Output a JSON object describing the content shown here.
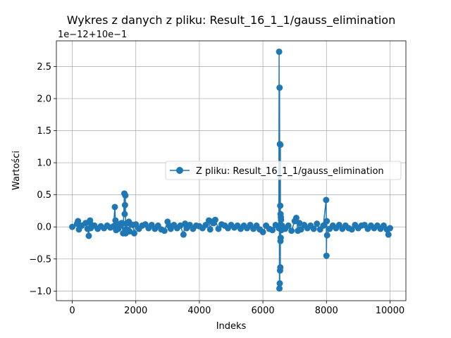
{
  "chart_data": {
    "type": "line",
    "title": "Wykres z danych z pliku: Result_16_1_1/gauss_elimination",
    "xlabel": "Indeks",
    "ylabel": "Wartości",
    "offset_label": "1e−12+10e−1",
    "xlim": [
      -500,
      10500
    ],
    "ylim": [
      -1.15,
      2.9
    ],
    "x_ticks": [
      0,
      2000,
      4000,
      6000,
      8000,
      10000
    ],
    "x_tick_labels": [
      "0",
      "2000",
      "4000",
      "6000",
      "8000",
      "10000"
    ],
    "y_ticks": [
      -1.0,
      -0.5,
      0.0,
      0.5,
      1.0,
      1.5,
      2.0,
      2.5
    ],
    "y_tick_labels": [
      "−1.0",
      "−0.5",
      "0.0",
      "0.5",
      "1.0",
      "1.5",
      "2.0",
      "2.5"
    ],
    "grid": true,
    "legend_position": "center-right",
    "color": "#1f77b4",
    "series": [
      {
        "name": "Z pliku: Result_16_1_1/gauss_elimination",
        "x": [
          0,
          150,
          180,
          210,
          300,
          420,
          480,
          520,
          540,
          560,
          580,
          600,
          700,
          800,
          900,
          1000,
          1100,
          1200,
          1300,
          1340,
          1360,
          1380,
          1400,
          1450,
          1500,
          1550,
          1600,
          1640,
          1650,
          1660,
          1670,
          1680,
          1690,
          1700,
          1720,
          1780,
          1800,
          1850,
          1900,
          1950,
          2000,
          2100,
          2200,
          2300,
          2400,
          2500,
          2600,
          2700,
          2800,
          2900,
          3000,
          3050,
          3100,
          3200,
          3300,
          3400,
          3500,
          3550,
          3600,
          3700,
          3800,
          3900,
          4000,
          4100,
          4200,
          4300,
          4340,
          4400,
          4450,
          4500,
          4600,
          4700,
          4800,
          4900,
          5000,
          5100,
          5200,
          5300,
          5400,
          5500,
          5600,
          5700,
          5800,
          5900,
          6000,
          6100,
          6200,
          6300,
          6400,
          6500,
          6510,
          6520,
          6525,
          6530,
          6535,
          6540,
          6545,
          6548,
          6550,
          6552,
          6555,
          6560,
          6565,
          6570,
          6580,
          6600,
          6700,
          6800,
          6900,
          7000,
          7050,
          7100,
          7150,
          7200,
          7300,
          7400,
          7500,
          7600,
          7700,
          7800,
          7900,
          7990,
          8000,
          8010,
          8020,
          8100,
          8200,
          8300,
          8400,
          8500,
          8600,
          8700,
          8800,
          8900,
          9000,
          9100,
          9200,
          9300,
          9400,
          9500,
          9600,
          9700,
          9800,
          9900,
          9950,
          10000
        ],
        "values": [
          0.0,
          0.05,
          0.09,
          -0.04,
          0.02,
          0.06,
          -0.03,
          -0.14,
          0.08,
          0.1,
          -0.02,
          0.03,
          0.02,
          -0.03,
          0.01,
          -0.02,
          0.02,
          -0.01,
          0.01,
          0.31,
          0.1,
          -0.05,
          0.05,
          -0.03,
          0.02,
          0.06,
          -0.1,
          0.52,
          0.2,
          0.34,
          0.49,
          -0.1,
          0.05,
          -0.04,
          0.06,
          0.08,
          -0.07,
          0.04,
          0.03,
          -0.1,
          0.04,
          -0.03,
          0.02,
          0.04,
          -0.02,
          0.03,
          -0.03,
          0.02,
          -0.04,
          -0.06,
          0.08,
          0.02,
          -0.03,
          0.03,
          -0.02,
          0.02,
          -0.12,
          0.05,
          -0.02,
          0.03,
          -0.03,
          0.02,
          0.01,
          -0.02,
          0.03,
          0.1,
          -0.04,
          0.08,
          0.06,
          0.11,
          -0.03,
          0.04,
          0.02,
          -0.02,
          0.03,
          -0.01,
          0.02,
          -0.03,
          0.02,
          -0.02,
          0.03,
          -0.03,
          0.02,
          -0.04,
          -0.08,
          0.02,
          -0.03,
          -0.05,
          0.03,
          -0.02,
          2.73,
          -0.96,
          2.17,
          -0.88,
          1.29,
          -0.68,
          0.33,
          -0.63,
          1.28,
          -0.22,
          0.2,
          -0.17,
          0.15,
          0.11,
          -0.05,
          0.02,
          -0.03,
          0.02,
          -0.06,
          0.09,
          0.14,
          -0.06,
          0.06,
          -0.04,
          0.03,
          -0.02,
          0.02,
          -0.03,
          0.05,
          -0.04,
          0.02,
          0.42,
          -0.45,
          0.09,
          -0.13,
          -0.03,
          0.02,
          -0.02,
          0.03,
          -0.03,
          0.02,
          -0.02,
          -0.04,
          0.03,
          -0.02,
          0.02,
          0.03,
          -0.03,
          0.02,
          -0.02,
          0.02,
          -0.03,
          0.02,
          -0.04,
          -0.12,
          -0.02
        ]
      }
    ]
  }
}
